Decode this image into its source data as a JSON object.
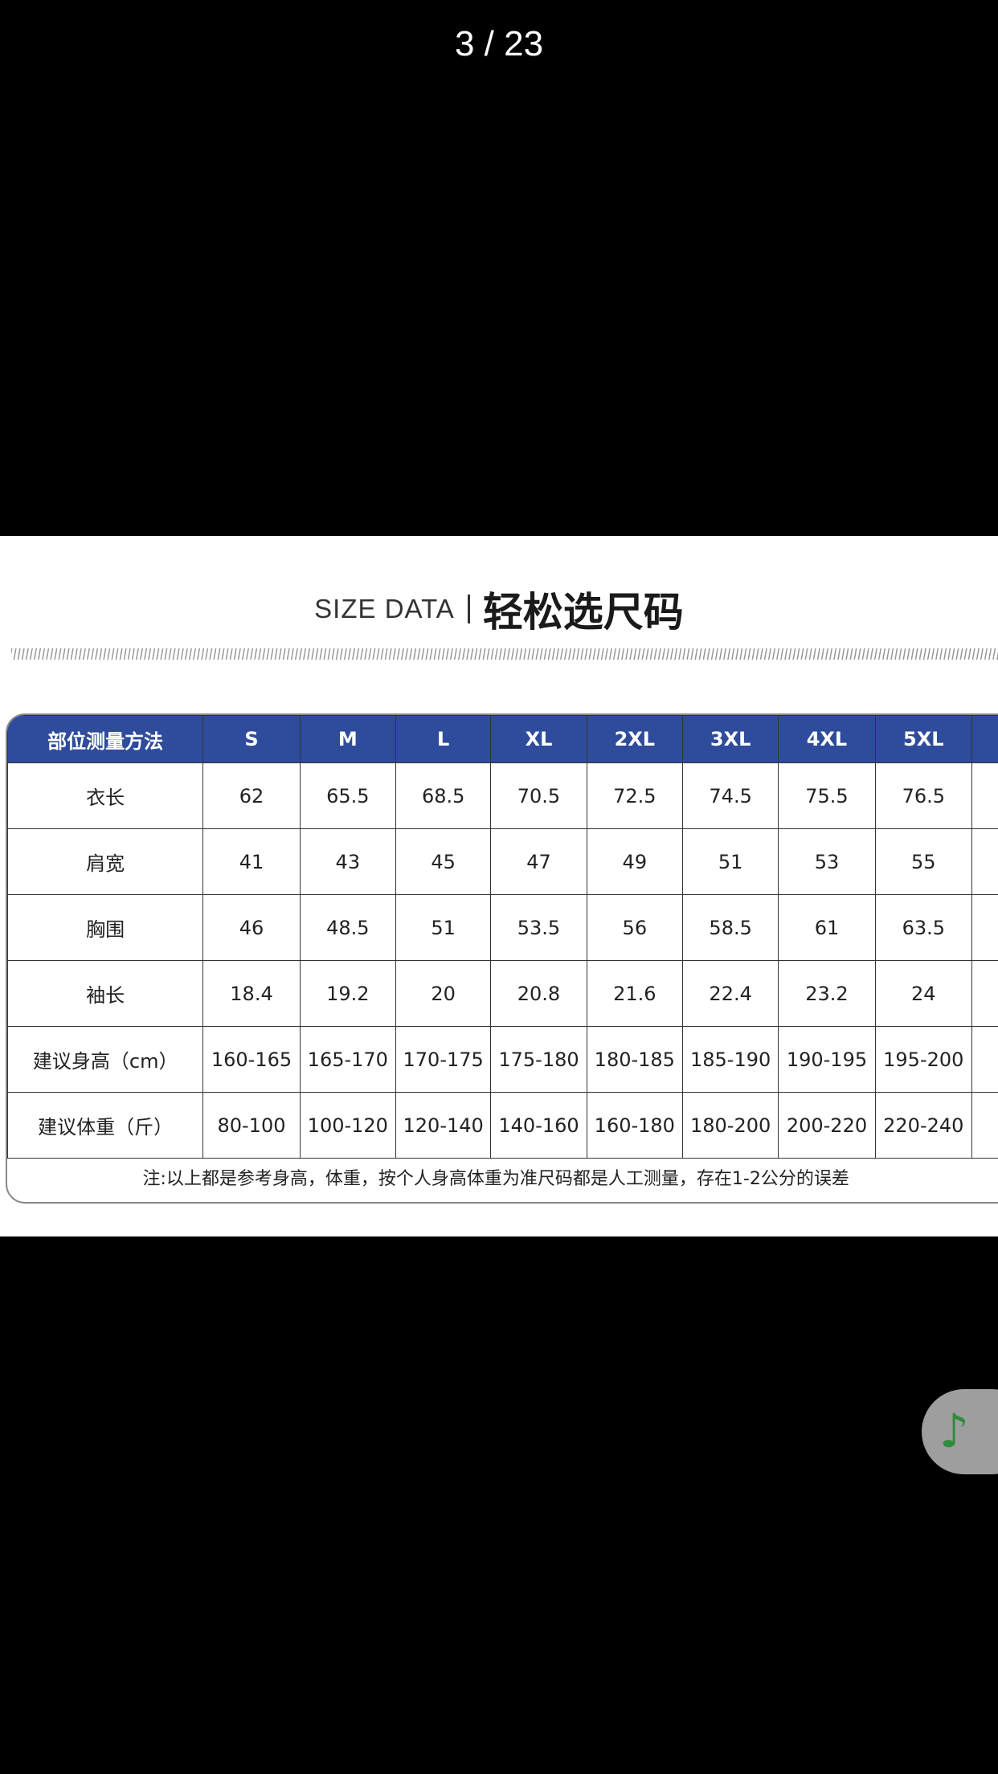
{
  "viewer": {
    "counter": "3 / 23"
  },
  "image": {
    "title_en": "SIZE DATA",
    "title_zh": "轻松选尺码",
    "header_color": "#2f4c9c",
    "table": {
      "columns": [
        "部位测量方法",
        "S",
        "M",
        "L",
        "XL",
        "2XL",
        "3XL",
        "4XL",
        "5XL"
      ],
      "rows": [
        {
          "label": "衣长",
          "values": [
            "62",
            "65.5",
            "68.5",
            "70.5",
            "72.5",
            "74.5",
            "75.5",
            "76.5"
          ]
        },
        {
          "label": "肩宽",
          "values": [
            "41",
            "43",
            "45",
            "47",
            "49",
            "51",
            "53",
            "55"
          ]
        },
        {
          "label": "胸围",
          "values": [
            "46",
            "48.5",
            "51",
            "53.5",
            "56",
            "58.5",
            "61",
            "63.5"
          ]
        },
        {
          "label": "袖长",
          "values": [
            "18.4",
            "19.2",
            "20",
            "20.8",
            "21.6",
            "22.4",
            "23.2",
            "24"
          ]
        },
        {
          "label": "建议身高（cm）",
          "values": [
            "160-165",
            "165-170",
            "170-175",
            "175-180",
            "180-185",
            "185-190",
            "190-195",
            "195-200"
          ]
        },
        {
          "label": "建议体重（斤）",
          "values": [
            "80-100",
            "100-120",
            "120-140",
            "140-160",
            "160-180",
            "180-200",
            "200-220",
            "220-240"
          ]
        }
      ],
      "note": "注:以上都是参考身高，体重，按个人身高体重为准尺码都是人工测量，存在1-2公分的误差"
    }
  },
  "floating_button": {
    "icon": "music-note-icon",
    "color": "#2e8b3e"
  }
}
